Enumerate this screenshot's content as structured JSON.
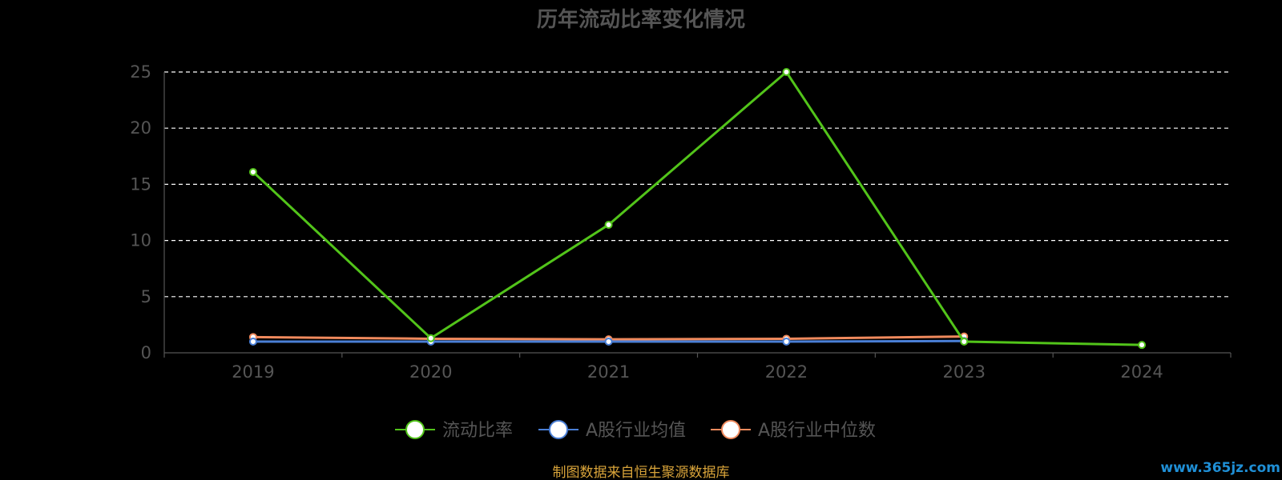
{
  "chart_data": {
    "type": "line",
    "title": "历年流动比率变化情况",
    "categories": [
      "2019",
      "2020",
      "2021",
      "2022",
      "2023",
      "2024"
    ],
    "ylim": [
      0,
      25
    ],
    "yticks": [
      "0",
      "5",
      "10",
      "15",
      "20",
      "25"
    ],
    "grid": true,
    "legend_position": "bottom-center",
    "series": [
      {
        "name": "流动比率",
        "color": "#52c41a",
        "values": [
          16.1,
          1.3,
          11.4,
          25.0,
          1.0,
          0.7
        ]
      },
      {
        "name": "A股行业均值",
        "color": "#4a7fd6",
        "values": [
          1.0,
          1.0,
          1.0,
          1.0,
          1.05,
          null
        ]
      },
      {
        "name": "A股行业中位数",
        "color": "#f08a5d",
        "values": [
          1.4,
          1.25,
          1.2,
          1.25,
          1.45,
          null
        ]
      }
    ]
  },
  "footer": {
    "source": "制图数据来自恒生聚源数据库",
    "watermark": "www.365jz.com"
  }
}
